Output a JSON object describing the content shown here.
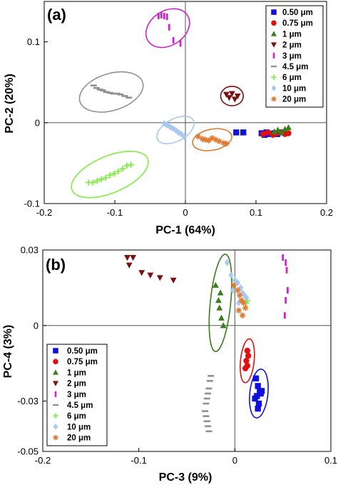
{
  "chart_data": [
    {
      "type": "scatter",
      "panel_label": "(a)",
      "xlabel": "PC-1 (64%)",
      "ylabel": "PC-2 (20%)",
      "xlim": [
        -0.2,
        0.2
      ],
      "ylim": [
        -0.1,
        0.15
      ],
      "xticks": [
        -0.2,
        -0.1,
        0,
        0.1,
        0.2
      ],
      "xtick_labels": [
        "-0.2",
        "-0.1",
        "0",
        "0.1",
        "0.2"
      ],
      "yticks": [
        -0.1,
        0,
        0.1
      ],
      "ytick_labels": [
        "-0.1",
        "0",
        "0.1"
      ],
      "legend_position": "top-right",
      "series": [
        {
          "name": "0.50 μm",
          "color": "#1010e0",
          "marker": "square",
          "x": [
            0.072,
            0.082,
            0.108,
            0.112,
            0.115,
            0.12,
            0.126,
            0.13,
            0.135
          ],
          "y": [
            -0.012,
            -0.012,
            -0.013,
            -0.015,
            -0.012,
            -0.014,
            -0.013,
            -0.014,
            -0.012
          ]
        },
        {
          "name": "0.75 μm",
          "color": "#e01010",
          "marker": "circle",
          "x": [
            0.11,
            0.117,
            0.124,
            0.129,
            0.135,
            0.141,
            0.146
          ],
          "y": [
            -0.014,
            -0.012,
            -0.015,
            -0.013,
            -0.012,
            -0.014,
            -0.013
          ]
        },
        {
          "name": "1 μm",
          "color": "#3a7d1a",
          "marker": "triangle-up",
          "x": [
            0.126,
            0.131,
            0.136,
            0.141,
            0.146
          ],
          "y": [
            -0.011,
            -0.009,
            -0.012,
            -0.008,
            -0.006
          ]
        },
        {
          "name": "2 μm",
          "color": "#7a1010",
          "marker": "triangle-down",
          "x": [
            0.058,
            0.062,
            0.066,
            0.07,
            0.074
          ],
          "y": [
            0.035,
            0.031,
            0.036,
            0.029,
            0.033
          ]
        },
        {
          "name": "3 μm",
          "color": "#d020d0",
          "marker": "bar",
          "x": [
            -0.038,
            -0.034,
            -0.03,
            -0.026,
            -0.023,
            -0.017,
            -0.007
          ],
          "y": [
            0.132,
            0.133,
            0.132,
            0.131,
            0.118,
            0.102,
            0.098
          ]
        },
        {
          "name": "4.5 μm",
          "color": "#909090",
          "marker": "dash",
          "x": [
            -0.13,
            -0.126,
            -0.121,
            -0.117,
            -0.112,
            -0.107,
            -0.102,
            -0.097,
            -0.092,
            -0.086,
            -0.08
          ],
          "y": [
            0.046,
            0.043,
            0.041,
            0.04,
            0.038,
            0.037,
            0.036,
            0.036,
            0.035,
            0.033,
            0.031
          ]
        },
        {
          "name": "6 μm",
          "color": "#80ee40",
          "marker": "plus",
          "x": [
            -0.137,
            -0.131,
            -0.125,
            -0.119,
            -0.113,
            -0.107,
            -0.101,
            -0.095,
            -0.089,
            -0.083,
            -0.077
          ],
          "y": [
            -0.074,
            -0.074,
            -0.072,
            -0.07,
            -0.068,
            -0.065,
            -0.063,
            -0.06,
            -0.057,
            -0.053,
            -0.052
          ]
        },
        {
          "name": "10 μm",
          "color": "#a8c8f0",
          "marker": "diamond",
          "x": [
            -0.03,
            -0.026,
            -0.022,
            -0.018,
            -0.014,
            -0.01,
            -0.006,
            -0.002
          ],
          "y": [
            -0.001,
            -0.003,
            -0.005,
            -0.007,
            -0.009,
            -0.012,
            -0.014,
            -0.017
          ]
        },
        {
          "name": "20 μm",
          "color": "#e07a30",
          "marker": "star",
          "x": [
            0.018,
            0.024,
            0.028,
            0.033,
            0.038,
            0.043,
            0.048,
            0.054,
            0.058
          ],
          "y": [
            -0.017,
            -0.02,
            -0.021,
            -0.022,
            -0.019,
            -0.021,
            -0.023,
            -0.025,
            -0.026
          ]
        }
      ],
      "ellipses": [
        {
          "color": "#d020d0",
          "cx": -0.025,
          "cy": 0.117,
          "rx": 0.032,
          "ry": 0.022,
          "angle": 30
        },
        {
          "color": "#909090",
          "cx": -0.105,
          "cy": 0.038,
          "rx": 0.046,
          "ry": 0.023,
          "angle": 15
        },
        {
          "color": "#80ee40",
          "cx": -0.107,
          "cy": -0.064,
          "rx": 0.057,
          "ry": 0.023,
          "angle": 20
        },
        {
          "color": "#a8c8f0",
          "cx": -0.014,
          "cy": -0.009,
          "rx": 0.028,
          "ry": 0.014,
          "angle": 25
        },
        {
          "color": "#e07a30",
          "cx": 0.038,
          "cy": -0.021,
          "rx": 0.028,
          "ry": 0.013,
          "angle": 10
        },
        {
          "color": "#7a1010",
          "cx": 0.066,
          "cy": 0.033,
          "rx": 0.016,
          "ry": 0.012,
          "angle": 0
        }
      ]
    },
    {
      "type": "scatter",
      "panel_label": "(b)",
      "xlabel": "PC-3 (9%)",
      "ylabel": "PC-4 (3%)",
      "xlim": [
        -0.2,
        0.1
      ],
      "ylim": [
        -0.05,
        0.03
      ],
      "xticks": [
        -0.2,
        -0.1,
        0,
        0.1
      ],
      "xtick_labels": [
        "-0.2",
        "-0.1",
        "0",
        "0.1"
      ],
      "yticks": [
        -0.05,
        -0.03,
        0,
        0.03
      ],
      "ytick_labels": [
        "-0.05",
        "-0.03",
        "0",
        "0.03"
      ],
      "legend_position": "bottom-left",
      "series": [
        {
          "name": "0.50 μm",
          "color": "#1010e0",
          "marker": "square",
          "x": [
            0.022,
            0.024,
            0.026,
            0.027,
            0.023,
            0.021,
            0.025,
            0.028,
            0.024
          ],
          "y": [
            -0.021,
            -0.024,
            -0.026,
            -0.027,
            -0.028,
            -0.029,
            -0.031,
            -0.026,
            -0.033
          ]
        },
        {
          "name": "0.75 μm",
          "color": "#e01010",
          "marker": "circle",
          "x": [
            0.013,
            0.014,
            0.012,
            0.011,
            0.013
          ],
          "y": [
            -0.01,
            -0.012,
            -0.014,
            -0.017,
            -0.016
          ]
        },
        {
          "name": "1 μm",
          "color": "#3a7d1a",
          "marker": "triangle-up",
          "x": [
            -0.02,
            -0.015,
            -0.017,
            -0.016,
            -0.014,
            -0.012
          ],
          "y": [
            0.016,
            0.013,
            0.01,
            0.007,
            0.003,
            0.0
          ]
        },
        {
          "name": "2 μm",
          "color": "#7a1010",
          "marker": "triangle-down",
          "x": [
            -0.112,
            -0.106,
            -0.11,
            -0.097,
            -0.088,
            -0.078,
            -0.064
          ],
          "y": [
            0.027,
            0.027,
            0.024,
            0.021,
            0.02,
            0.019,
            0.018
          ]
        },
        {
          "name": "3 μm",
          "color": "#d020d0",
          "marker": "bar",
          "x": [
            0.05,
            0.053,
            0.054,
            0.055,
            0.053,
            0.052
          ],
          "y": [
            0.027,
            0.025,
            0.022,
            0.014,
            0.01,
            0.004
          ]
        },
        {
          "name": "4.5 μm",
          "color": "#909090",
          "marker": "dash",
          "x": [
            -0.025,
            -0.026,
            -0.027,
            -0.028,
            -0.029,
            -0.03,
            -0.031,
            -0.03,
            -0.029,
            -0.028,
            -0.027
          ],
          "y": [
            -0.02,
            -0.022,
            -0.025,
            -0.027,
            -0.029,
            -0.031,
            -0.034,
            -0.036,
            -0.038,
            -0.04,
            -0.042
          ]
        },
        {
          "name": "6 μm",
          "color": "#80ee40",
          "marker": "plus",
          "x": [
            0.012,
            0.013
          ],
          "y": [
            0.009,
            0.01
          ]
        },
        {
          "name": "10 μm",
          "color": "#a8c8f0",
          "marker": "diamond",
          "x": [
            -0.008,
            -0.004,
            0.0,
            0.003,
            0.006,
            0.008,
            0.01,
            0.012,
            -0.002,
            0.004
          ],
          "y": [
            0.025,
            0.02,
            0.018,
            0.017,
            0.015,
            0.013,
            0.012,
            0.011,
            0.014,
            0.009
          ]
        },
        {
          "name": "20 μm",
          "color": "#e07a30",
          "marker": "star",
          "x": [
            -0.001,
            0.003,
            0.005,
            0.007,
            0.009,
            0.011,
            0.004,
            0.008
          ],
          "y": [
            0.016,
            0.014,
            0.012,
            0.01,
            0.009,
            0.007,
            0.006,
            0.004
          ]
        }
      ],
      "ellipses": [
        {
          "color": "#3a7d1a",
          "cx": -0.015,
          "cy": 0.009,
          "rx": 0.02,
          "ry": 0.009,
          "angle": 75
        },
        {
          "color": "#e01010",
          "cx": 0.013,
          "cy": -0.014,
          "rx": 0.009,
          "ry": 0.006,
          "angle": 75
        },
        {
          "color": "#1010e0",
          "cx": 0.025,
          "cy": -0.027,
          "rx": 0.01,
          "ry": 0.008,
          "angle": 75
        }
      ]
    }
  ]
}
